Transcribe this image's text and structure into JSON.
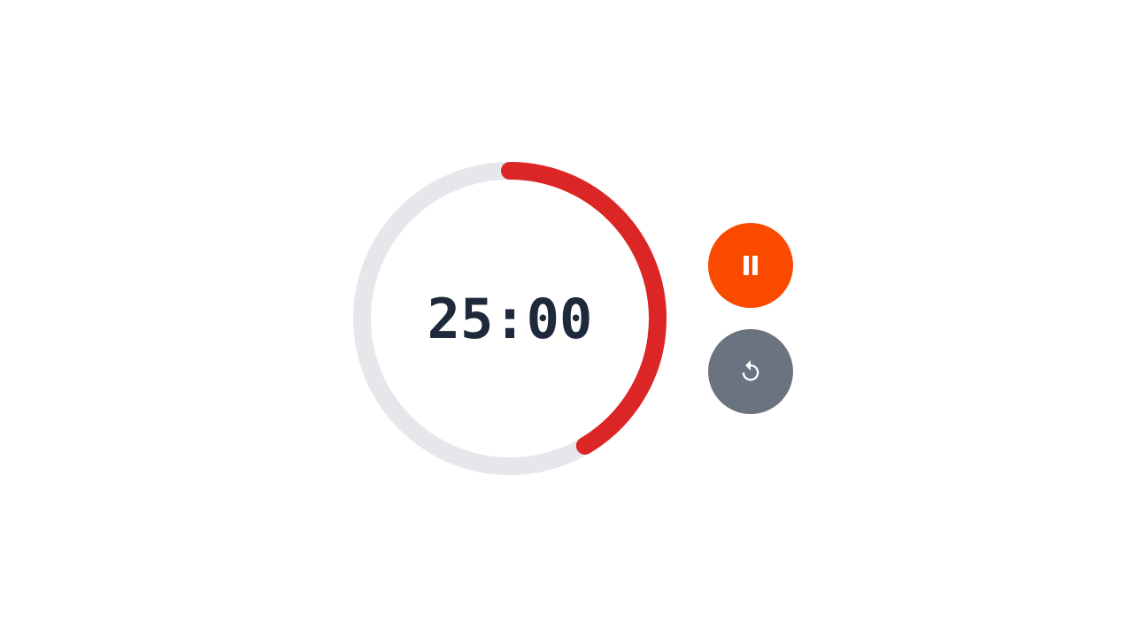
{
  "timer": {
    "time_text": "25:00",
    "progress_fraction": 0.415,
    "track_color": "#e5e7eb",
    "progress_color": "#dc2626",
    "text_color": "#1e293b"
  },
  "controls": {
    "pause": {
      "icon": "pause-icon",
      "color": "#f94a00"
    },
    "reset": {
      "icon": "reset-icon",
      "color": "#6b7280"
    }
  }
}
